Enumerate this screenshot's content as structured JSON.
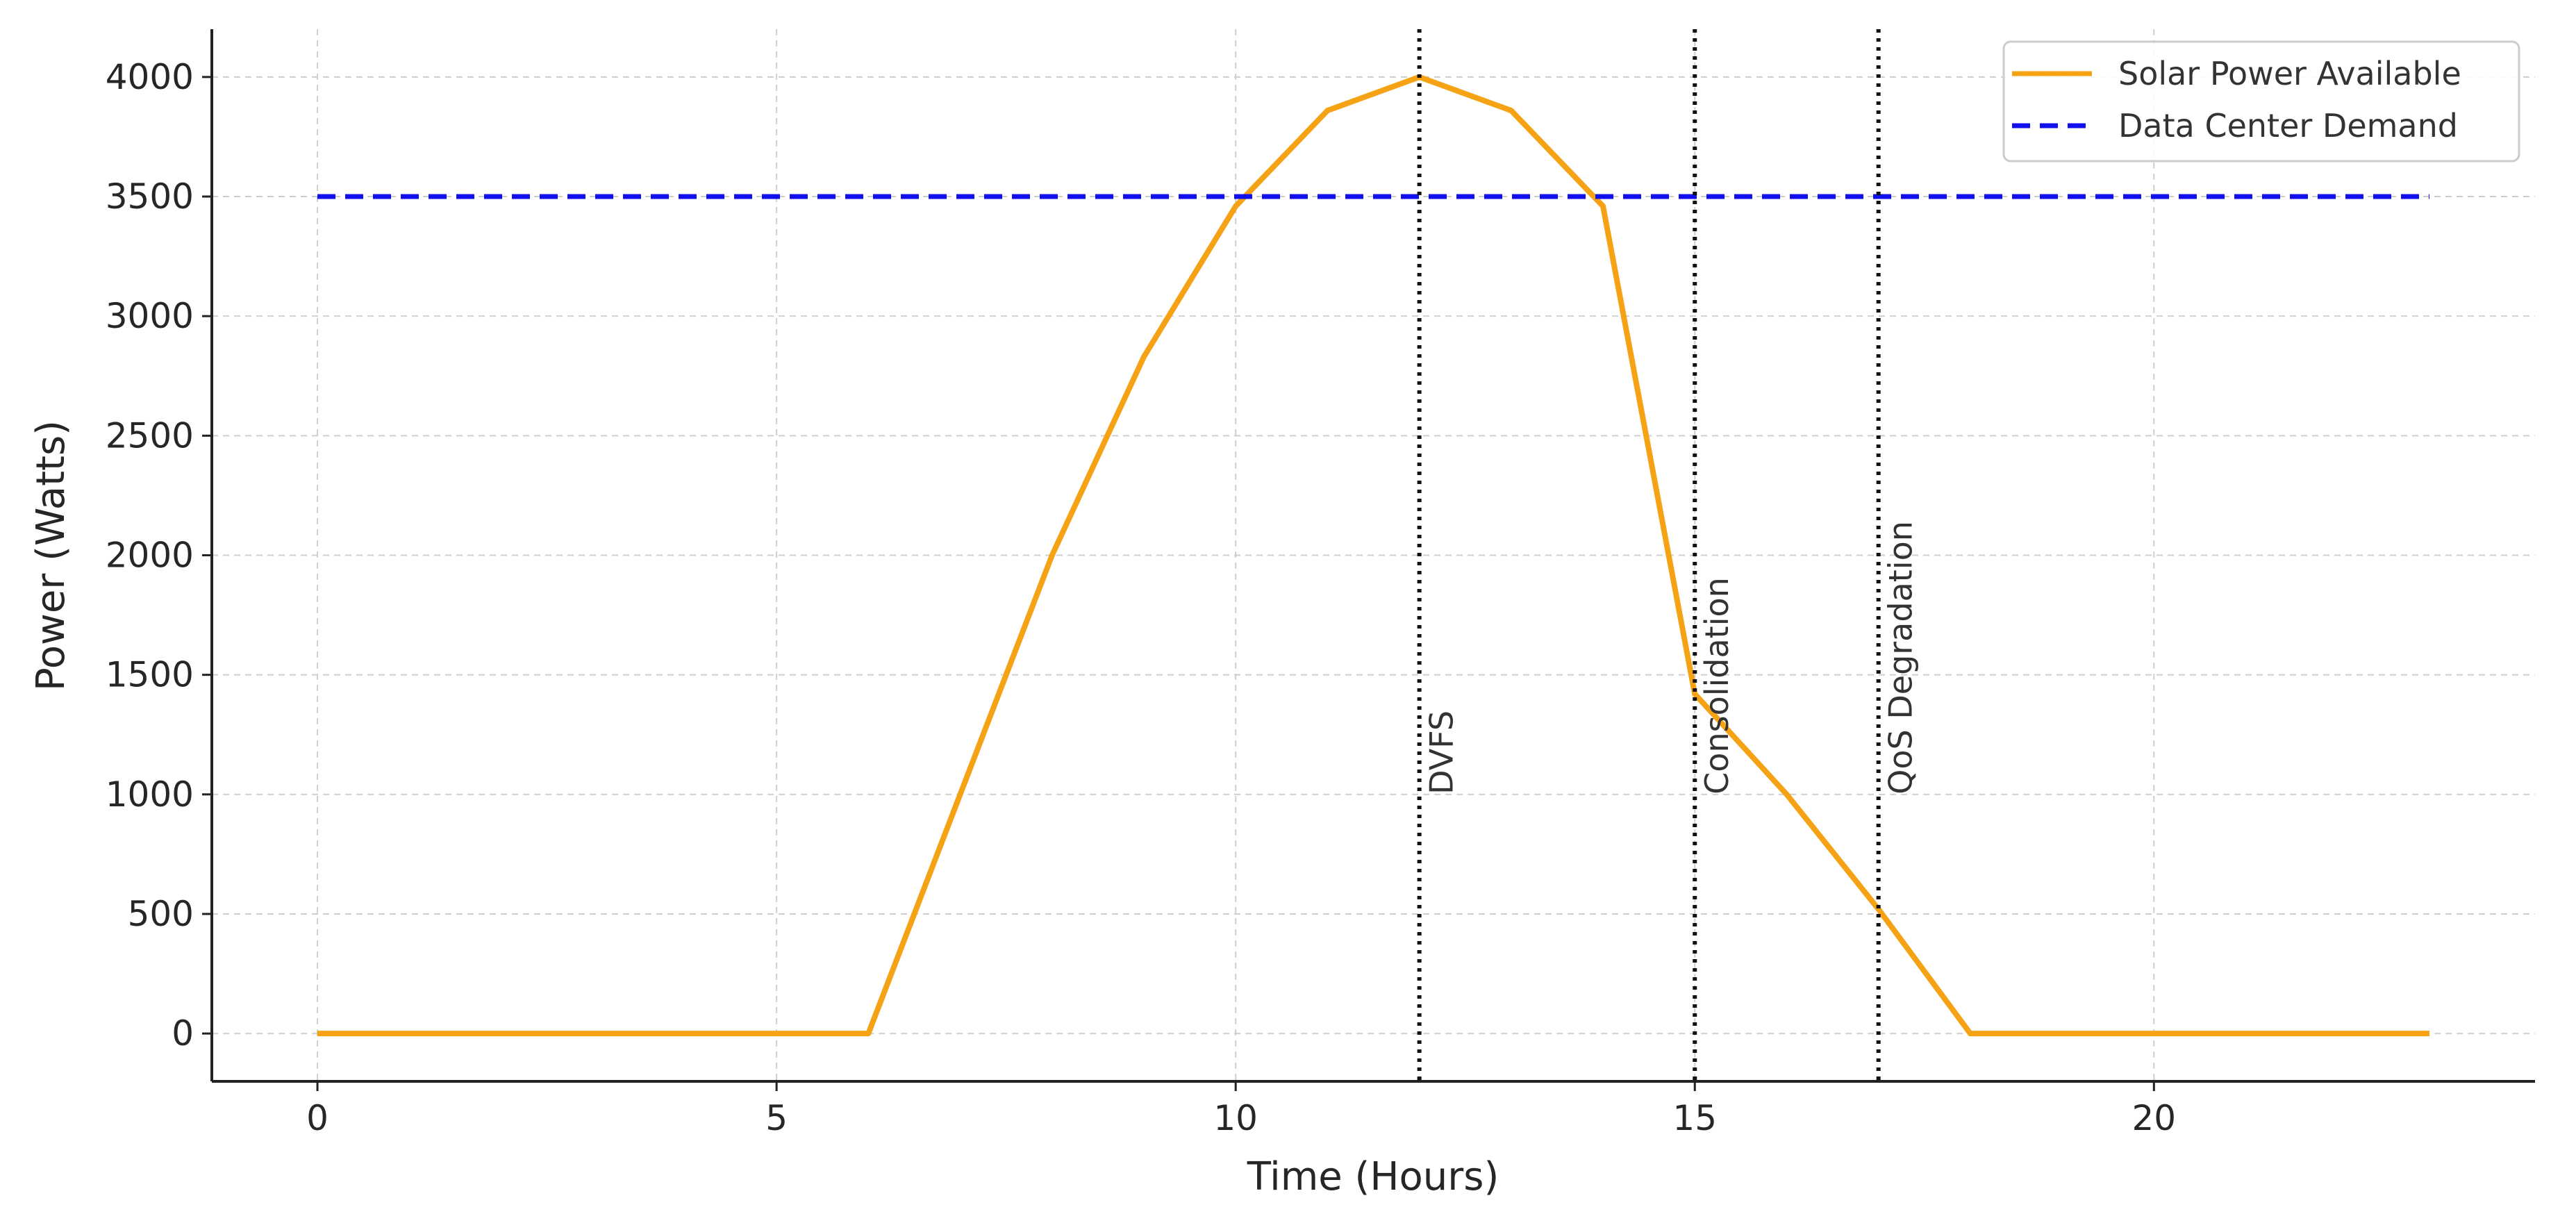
{
  "chart_data": {
    "type": "line",
    "title": "",
    "xlabel": "Time (Hours)",
    "ylabel": "Power (Watts)",
    "xlim": [
      -1.15,
      24.15
    ],
    "ylim": [
      -200,
      4200
    ],
    "xticks": [
      0,
      5,
      10,
      15,
      20
    ],
    "yticks": [
      0,
      500,
      1000,
      1500,
      2000,
      2500,
      3000,
      3500,
      4000
    ],
    "grid": true,
    "legend_position": "top-right",
    "series": [
      {
        "name": "Solar Power Available",
        "color": "#f5a214",
        "style": "solid",
        "x": [
          0,
          1,
          2,
          3,
          4,
          5,
          6,
          7,
          8,
          9,
          10,
          11,
          12,
          13,
          14,
          15,
          16,
          17,
          18,
          19,
          20,
          21,
          22,
          23
        ],
        "y": [
          0,
          0,
          0,
          0,
          0,
          0,
          0,
          1000,
          2000,
          2830,
          3460,
          3860,
          4000,
          3860,
          3460,
          1420,
          1000,
          520,
          0,
          0,
          0,
          0,
          0,
          0
        ]
      },
      {
        "name": "Data Center Demand",
        "color": "#1010ee",
        "style": "dashed",
        "x": [
          0,
          23
        ],
        "y": [
          3500,
          3500
        ]
      }
    ],
    "annotations": [
      {
        "x": 12,
        "label": "DVFS",
        "label_y": 1000
      },
      {
        "x": 15,
        "label": "Consolidation",
        "label_y": 1000
      },
      {
        "x": 17,
        "label": "QoS Degradation",
        "label_y": 1000
      }
    ]
  }
}
